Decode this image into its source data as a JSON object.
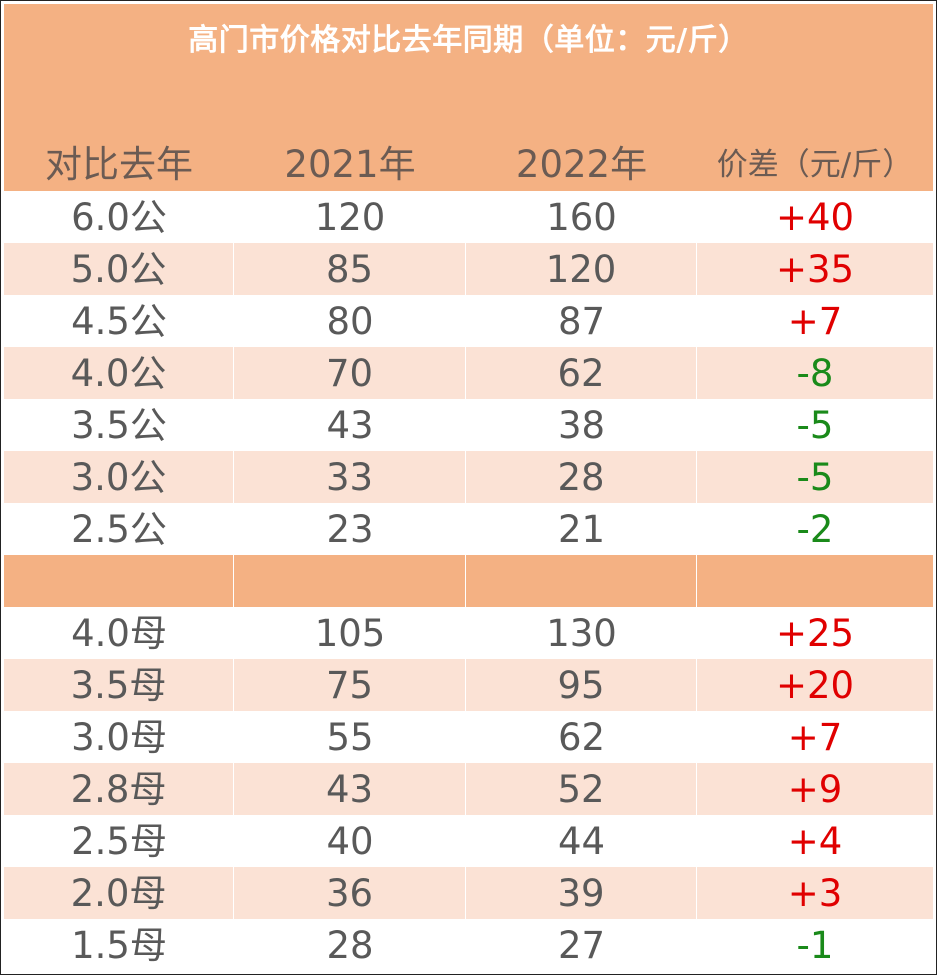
{
  "title": "高门市价格对比去年同期（单位：元/斤）",
  "columns": [
    "对比去年",
    "2021年",
    "2022年",
    "价差（元/斤）"
  ],
  "colors": {
    "header_bg": "#f4b183",
    "alt_row_bg": "#fbe2d5",
    "increase": "#e00000",
    "decrease": "#1a8a1a",
    "text": "#595959"
  },
  "rows_male": [
    {
      "spec": "6.0公",
      "y2021": "120",
      "y2022": "160",
      "diff": "+40",
      "trend": "up"
    },
    {
      "spec": "5.0公",
      "y2021": "85",
      "y2022": "120",
      "diff": "+35",
      "trend": "up"
    },
    {
      "spec": "4.5公",
      "y2021": "80",
      "y2022": "87",
      "diff": "+7",
      "trend": "up"
    },
    {
      "spec": "4.0公",
      "y2021": "70",
      "y2022": "62",
      "diff": "-8",
      "trend": "down"
    },
    {
      "spec": "3.5公",
      "y2021": "43",
      "y2022": "38",
      "diff": "-5",
      "trend": "down"
    },
    {
      "spec": "3.0公",
      "y2021": "33",
      "y2022": "28",
      "diff": "-5",
      "trend": "down"
    },
    {
      "spec": "2.5公",
      "y2021": "23",
      "y2022": "21",
      "diff": "-2",
      "trend": "down"
    }
  ],
  "rows_female": [
    {
      "spec": "4.0母",
      "y2021": "105",
      "y2022": "130",
      "diff": "+25",
      "trend": "up"
    },
    {
      "spec": "3.5母",
      "y2021": "75",
      "y2022": "95",
      "diff": "+20",
      "trend": "up"
    },
    {
      "spec": "3.0母",
      "y2021": "55",
      "y2022": "62",
      "diff": "+7",
      "trend": "up"
    },
    {
      "spec": "2.8母",
      "y2021": "43",
      "y2022": "52",
      "diff": "+9",
      "trend": "up"
    },
    {
      "spec": "2.5母",
      "y2021": "40",
      "y2022": "44",
      "diff": "+4",
      "trend": "up"
    },
    {
      "spec": "2.0母",
      "y2021": "36",
      "y2022": "39",
      "diff": "+3",
      "trend": "up"
    },
    {
      "spec": "1.5母",
      "y2021": "28",
      "y2022": "27",
      "diff": "-1",
      "trend": "down"
    }
  ]
}
